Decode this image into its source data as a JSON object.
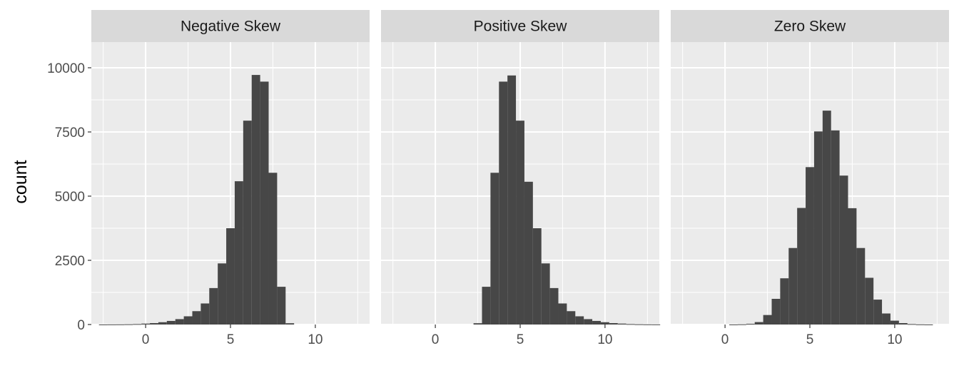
{
  "chart_data": {
    "type": "bar",
    "ylabel": "count",
    "xlabel": "",
    "ylim": [
      0,
      11000
    ],
    "xlim": [
      -3.2,
      13.2
    ],
    "y_ticks": [
      0,
      2500,
      5000,
      7500,
      10000
    ],
    "y_tick_labels": [
      "0",
      "2500",
      "5000",
      "7500",
      "10000"
    ],
    "x_ticks": [
      0,
      5,
      10
    ],
    "x_tick_labels": [
      "0",
      "5",
      "10"
    ],
    "bin_start": -2.75,
    "bin_width": 0.5,
    "grid": true,
    "colors": {
      "panel_bg": "#ebebeb",
      "grid": "#ffffff",
      "bar": "#474747",
      "strip_bg": "#d9d9d9",
      "tick_mark": "#333333"
    },
    "panels": [
      {
        "title": "Negative Skew",
        "values": [
          2,
          4,
          6,
          10,
          18,
          35,
          55,
          90,
          140,
          210,
          320,
          520,
          820,
          1420,
          2380,
          3750,
          5580,
          7940,
          9720,
          9460,
          5910,
          1470,
          50
        ]
      },
      {
        "title": "Positive Skew",
        "values": [
          0,
          0,
          0,
          0,
          0,
          0,
          0,
          0,
          0,
          0,
          50,
          1470,
          5910,
          9460,
          9700,
          7940,
          5560,
          3750,
          2380,
          1420,
          820,
          520,
          320,
          210,
          140,
          90,
          55,
          35,
          18,
          10,
          6,
          4
        ]
      },
      {
        "title": "Zero Skew",
        "values": [
          0,
          0,
          0,
          0,
          0,
          0,
          2,
          8,
          28,
          95,
          370,
          1000,
          1800,
          2980,
          4540,
          6130,
          7520,
          8330,
          7560,
          5800,
          4530,
          2980,
          1820,
          970,
          430,
          150,
          55,
          18,
          6,
          2
        ]
      }
    ]
  }
}
